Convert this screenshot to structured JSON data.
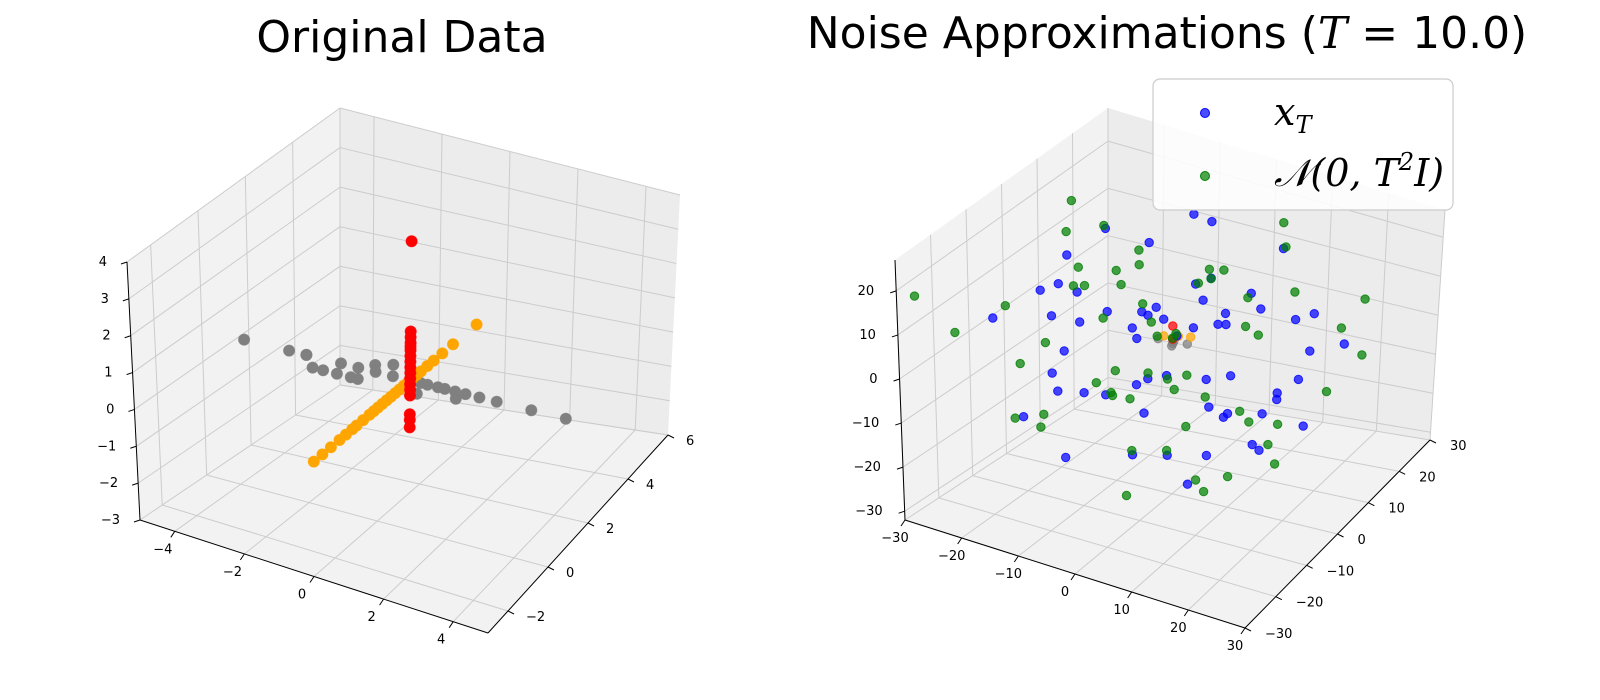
{
  "chart_data": [
    {
      "type": "scatter",
      "title": "Original Data",
      "axes": {
        "x": {
          "ticks": [
            "−4",
            "−2",
            "0",
            "2",
            "4"
          ],
          "range": [
            -5,
            5
          ]
        },
        "y": {
          "ticks": [
            "−2",
            "0",
            "2",
            "4",
            "6"
          ],
          "range": [
            -3,
            6
          ]
        },
        "z": {
          "ticks": [
            "−3",
            "−2",
            "−1",
            "0",
            "1",
            "2",
            "3",
            "4"
          ],
          "range": [
            -3,
            4
          ]
        }
      },
      "grid": true,
      "series": [
        {
          "color": "#808080",
          "points": [
            [
              -4.8,
              1.5,
              0
            ],
            [
              -3.5,
              1.5,
              0
            ],
            [
              -3,
              1.5,
              0
            ],
            [
              -3,
              1.5,
              0
            ],
            [
              -2.5,
              1,
              0
            ],
            [
              -2.2,
              1,
              0
            ],
            [
              -2,
              1.5,
              0
            ],
            [
              -1.8,
              1,
              0
            ],
            [
              -1.5,
              1.5,
              0
            ],
            [
              -1.4,
              1,
              0
            ],
            [
              -1.2,
              1,
              0
            ],
            [
              -1,
              1.5,
              0
            ],
            [
              -0.5,
              1.5,
              0
            ],
            [
              0,
              1.5,
              0
            ],
            [
              0.3,
              1.5,
              0
            ],
            [
              0.5,
              1.5,
              0
            ],
            [
              0.8,
              1.5,
              0
            ],
            [
              1,
              1.5,
              0
            ],
            [
              1.3,
              1.5,
              0
            ],
            [
              1.6,
              1.5,
              0
            ],
            [
              2,
              1.5,
              0
            ],
            [
              2.5,
              1.5,
              0
            ],
            [
              3.5,
              1.5,
              0
            ],
            [
              4.5,
              1.5,
              0
            ],
            [
              -0.8,
              2,
              0
            ],
            [
              0.5,
              1,
              0
            ],
            [
              1.5,
              1.2,
              0
            ],
            [
              -1.2,
              1.8,
              0
            ]
          ]
        },
        {
          "color": "#ffa500",
          "points": [
            [
              0,
              -3,
              0
            ],
            [
              0,
              -2.6,
              0
            ],
            [
              0,
              -2.2,
              0
            ],
            [
              0,
              -1.8,
              0
            ],
            [
              0,
              -1.5,
              0
            ],
            [
              0,
              -1.2,
              0
            ],
            [
              0,
              -1,
              0
            ],
            [
              0,
              -0.7,
              0
            ],
            [
              0,
              -0.4,
              0
            ],
            [
              0,
              -0.2,
              0
            ],
            [
              0,
              0,
              0
            ],
            [
              0,
              0.2,
              0
            ],
            [
              0,
              0.4,
              0
            ],
            [
              0,
              0.6,
              0
            ],
            [
              0,
              0.8,
              0
            ],
            [
              0,
              1,
              0
            ],
            [
              0,
              1.2,
              0
            ],
            [
              0,
              1.4,
              0
            ],
            [
              0,
              1.6,
              0
            ],
            [
              0,
              1.8,
              0
            ],
            [
              0,
              2,
              0
            ],
            [
              0,
              2.3,
              0
            ],
            [
              0,
              2.6,
              0
            ],
            [
              0,
              3,
              0
            ],
            [
              0,
              3.5,
              0
            ],
            [
              0,
              4.6,
              0
            ]
          ]
        },
        {
          "color": "#ff0000",
          "points": [
            [
              0,
              1.5,
              3.7
            ],
            [
              0,
              1.5,
              1.3
            ],
            [
              0,
              1.5,
              1.15
            ],
            [
              0,
              1.5,
              1.0
            ],
            [
              0,
              1.5,
              0.9
            ],
            [
              0,
              1.5,
              0.8
            ],
            [
              0,
              1.5,
              0.65
            ],
            [
              0,
              1.5,
              0.5
            ],
            [
              0,
              1.5,
              0.35
            ],
            [
              0,
              1.5,
              0.2
            ],
            [
              0,
              1.5,
              0.05
            ],
            [
              0,
              1.5,
              -0.1
            ],
            [
              0,
              1.5,
              -0.25
            ],
            [
              0,
              1.5,
              -0.4
            ],
            [
              0,
              1.5,
              -0.9
            ],
            [
              0,
              1.5,
              -1.05
            ],
            [
              0,
              1.5,
              -1.25
            ]
          ]
        }
      ]
    },
    {
      "type": "scatter",
      "title": "Noise Approximations (",
      "title_var": "T",
      "title_value": " = 10.0)",
      "axes": {
        "x": {
          "ticks": [
            "−30",
            "−20",
            "−10",
            "0",
            "10",
            "20",
            "30"
          ],
          "range": [
            -30,
            30
          ]
        },
        "y": {
          "ticks": [
            "−30",
            "−20",
            "−10",
            "0",
            "10",
            "20",
            "30"
          ],
          "range": [
            -30,
            30
          ]
        },
        "z": {
          "ticks": [
            "−30",
            "−20",
            "−10",
            "0",
            "10",
            "20"
          ],
          "range": [
            -32,
            27
          ]
        }
      },
      "grid": true,
      "legend": {
        "placement": "upper right",
        "entries": [
          {
            "label": "x",
            "sub": "T",
            "color": "#0000ff"
          },
          {
            "label": "𝒩(0, T",
            "sup": "2",
            "tail": "I)",
            "color": "#008000"
          }
        ]
      },
      "series": [
        {
          "color": "#808080",
          "points": [
            [
              -2,
              -1,
              3
            ],
            [
              0,
              0,
              2
            ],
            [
              2,
              1,
              2
            ],
            [
              1,
              -2,
              3
            ],
            [
              -1,
              2,
              1
            ]
          ]
        },
        {
          "color": "#ffa500",
          "points": [
            [
              1,
              0,
              4
            ],
            [
              0,
              1,
              3
            ],
            [
              -1,
              -1,
              4
            ],
            [
              2,
              2,
              3
            ]
          ]
        },
        {
          "color": "#ff0000",
          "points": [
            [
              0,
              0,
              6
            ],
            [
              0,
              0,
              3
            ]
          ]
        },
        {
          "color": "#0000ff",
          "points": [
            [
              -12,
              8,
              -3
            ],
            [
              6,
              -4,
              10
            ],
            [
              14,
              18,
              -6
            ],
            [
              -8,
              -14,
              12
            ],
            [
              3,
              6,
              -15
            ],
            [
              -20,
              5,
              4
            ],
            [
              22,
              -6,
              2
            ],
            [
              -5,
              22,
              -8
            ],
            [
              9,
              -17,
              -10
            ],
            [
              -16,
              -9,
              -5
            ],
            [
              12,
              3,
              16
            ],
            [
              -3,
              -7,
              -20
            ],
            [
              18,
              12,
              8
            ],
            [
              -22,
              -16,
              9
            ],
            [
              0,
              -20,
              2
            ],
            [
              7,
              21,
              14
            ],
            [
              -10,
              15,
              -17
            ],
            [
              16,
              -12,
              -2
            ],
            [
              -6,
              3,
              21
            ],
            [
              4,
              9,
              5
            ],
            [
              -14,
              -3,
              -12
            ],
            [
              20,
              6,
              -14
            ],
            [
              -1,
              13,
              9
            ],
            [
              10,
              -8,
              20
            ],
            [
              -18,
              10,
              16
            ],
            [
              2,
              -12,
              -6
            ],
            [
              13,
              15,
              3
            ],
            [
              -9,
              -19,
              -1
            ],
            [
              5,
              2,
              -23
            ],
            [
              -4,
              18,
              18
            ],
            [
              17,
              -19,
              11
            ],
            [
              -11,
              -1,
              6
            ],
            [
              8,
              14,
              -20
            ],
            [
              -20,
              -11,
              -15
            ],
            [
              1,
              5,
              13
            ],
            [
              11,
              -2,
              -9
            ],
            [
              -7,
              9,
              0
            ],
            [
              19,
              20,
              -4
            ],
            [
              -13,
              -17,
              19
            ],
            [
              6,
              -21,
              7
            ],
            [
              -2,
              -4,
              10
            ],
            [
              15,
              1,
              -18
            ],
            [
              -17,
              19,
              -7
            ],
            [
              3,
              -10,
              17
            ],
            [
              -8,
              6,
              -12
            ],
            [
              24,
              -3,
              4
            ],
            [
              -24,
              4,
              -2
            ],
            [
              0,
              16,
              -3
            ],
            [
              9,
              -14,
              15
            ],
            [
              -15,
              -6,
              20
            ],
            [
              14,
              8,
              -11
            ],
            [
              -6,
              -22,
              -13
            ],
            [
              5,
              18,
              1
            ],
            [
              -19,
              -2,
              10
            ],
            [
              12,
              -16,
              -16
            ],
            [
              -3,
              11,
              24
            ],
            [
              8,
              4,
              -5
            ],
            [
              -12,
              -12,
              3
            ],
            [
              20,
              -10,
              -8
            ],
            [
              -1,
              -9,
              8
            ]
          ]
        },
        {
          "color": "#008000",
          "points": [
            [
              -30,
              -25,
              16
            ],
            [
              -25,
              -22,
              8
            ],
            [
              -21,
              -14,
              11
            ],
            [
              -17,
              -10,
              -14
            ],
            [
              -13,
              -6,
              18
            ],
            [
              -9,
              -2,
              -6
            ],
            [
              -5,
              2,
              4
            ],
            [
              -1,
              6,
              -9
            ],
            [
              3,
              10,
              14
            ],
            [
              7,
              14,
              -2
            ],
            [
              11,
              18,
              7
            ],
            [
              15,
              22,
              -18
            ],
            [
              19,
              26,
              3
            ],
            [
              -28,
              20,
              -5
            ],
            [
              -22,
              16,
              12
            ],
            [
              -18,
              12,
              -22
            ],
            [
              -14,
              8,
              6
            ],
            [
              -10,
              4,
              -16
            ],
            [
              -6,
              0,
              21
            ],
            [
              -2,
              -4,
              -3
            ],
            [
              2,
              -8,
              9
            ],
            [
              6,
              -12,
              -13
            ],
            [
              10,
              -16,
              17
            ],
            [
              14,
              -20,
              0
            ],
            [
              18,
              -24,
              -8
            ],
            [
              22,
              -28,
              14
            ],
            [
              -26,
              -2,
              -10
            ],
            [
              -20,
              2,
              19
            ],
            [
              -16,
              6,
              -1
            ],
            [
              -12,
              10,
              10
            ],
            [
              -8,
              14,
              -19
            ],
            [
              -4,
              18,
              5
            ],
            [
              0,
              22,
              -7
            ],
            [
              4,
              26,
              16
            ],
            [
              8,
              -26,
              -4
            ],
            [
              12,
              -22,
              11
            ],
            [
              16,
              -18,
              -15
            ],
            [
              20,
              -14,
              2
            ],
            [
              24,
              -10,
              -11
            ],
            [
              -24,
              10,
              20
            ],
            [
              -16,
              -20,
              -9
            ],
            [
              -8,
              -24,
              13
            ],
            [
              0,
              -14,
              -24
            ],
            [
              8,
              -6,
              22
            ],
            [
              16,
              2,
              -17
            ],
            [
              24,
              10,
              8
            ],
            [
              -12,
              20,
              -12
            ],
            [
              -4,
              -16,
              1
            ],
            [
              4,
              4,
              18
            ],
            [
              12,
              12,
              -20
            ],
            [
              20,
              24,
              -9
            ],
            [
              -20,
              -6,
              -20
            ],
            [
              -10,
              0,
              15
            ],
            [
              10,
              0,
              -25
            ],
            [
              15,
              8,
              25
            ],
            [
              -5,
              -10,
              -5
            ],
            [
              5,
              14,
              6
            ],
            [
              -15,
              16,
              -3
            ],
            [
              25,
              -20,
              5
            ],
            [
              -25,
              12,
              0
            ]
          ]
        }
      ]
    }
  ],
  "colors": {
    "pane": "#f2f2f2",
    "pane_side": "#ececec",
    "grid": "#cccccc",
    "axis_line": "#000000",
    "legend_border": "#cccccc"
  }
}
